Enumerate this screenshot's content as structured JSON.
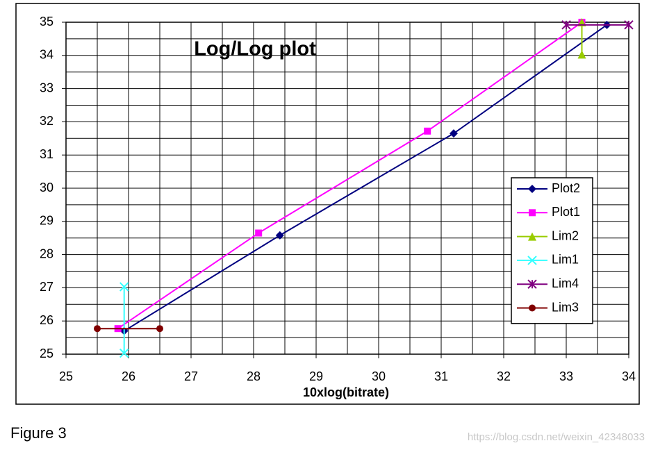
{
  "chart_data": {
    "type": "line",
    "title": "Log/Log  plot",
    "x_label": "10xlog(bitrate)",
    "xlim": [
      25,
      34
    ],
    "xticks": [
      25,
      26,
      27,
      28,
      29,
      30,
      31,
      32,
      33,
      34
    ],
    "ylim": [
      25,
      35
    ],
    "yticks": [
      25,
      26,
      27,
      28,
      29,
      30,
      31,
      32,
      33,
      34,
      35
    ],
    "grid": true,
    "minor_grid": true,
    "legend": "right",
    "series": [
      {
        "name": "Plot2",
        "color": "#000080",
        "marker": "diamond",
        "x": [
          25.93,
          28.42,
          31.2,
          33.65
        ],
        "values": [
          25.7,
          28.58,
          31.65,
          34.92
        ]
      },
      {
        "name": "Plot1",
        "color": "#ff00ff",
        "marker": "square",
        "x": [
          25.83,
          28.08,
          30.78,
          33.25
        ],
        "values": [
          25.77,
          28.65,
          31.72,
          35.0
        ]
      },
      {
        "name": "Lim2",
        "color": "#99cc00",
        "marker": "triangle",
        "x": [
          33.25,
          33.25
        ],
        "values": [
          35.0,
          34.03
        ]
      },
      {
        "name": "Lim1",
        "color": "#33ffff",
        "marker": "x",
        "x": [
          25.93,
          25.93
        ],
        "values": [
          27.03,
          25.03
        ]
      },
      {
        "name": "Lim4",
        "color": "#800080",
        "marker": "asterisk",
        "x": [
          33.0,
          34.0
        ],
        "values": [
          34.92,
          34.92
        ]
      },
      {
        "name": "Lim3",
        "color": "#800000",
        "marker": "circle",
        "x": [
          25.5,
          26.5
        ],
        "values": [
          25.77,
          25.77
        ]
      }
    ]
  },
  "figure_caption": "Figure  3",
  "watermark": "https://blog.csdn.net/weixin_42348033"
}
